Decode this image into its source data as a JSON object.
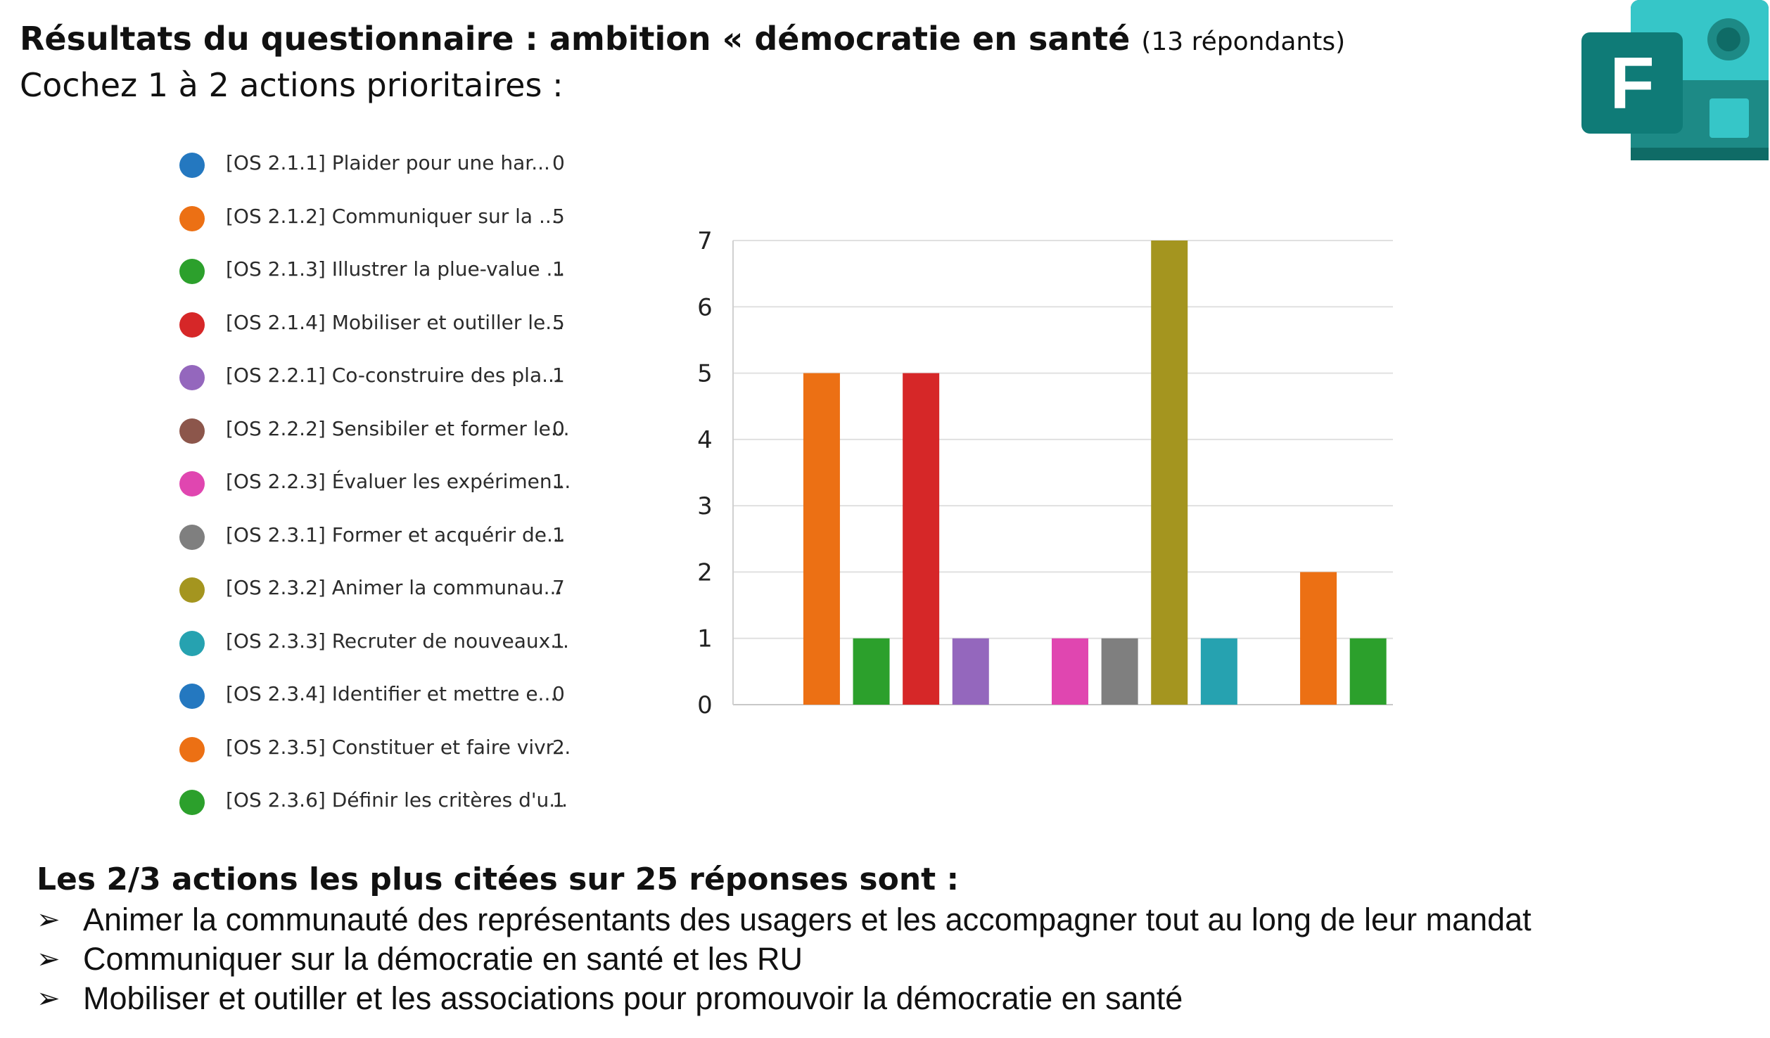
{
  "header": {
    "title": "Résultats du questionnaire : ambition « démocratie en santé",
    "respondents": "(13 répondants)",
    "subtitle": "Cochez 1 à 2 actions prioritaires :"
  },
  "logo": {
    "letter": "F",
    "icon": "microsoft-forms-logo"
  },
  "colors": {
    "blue": "#2478c0",
    "orange": "#ec7014",
    "green": "#2ca02c",
    "red": "#d62728",
    "purple": "#9467bd",
    "brown": "#8c564b",
    "pink": "#e046b0",
    "grey": "#7f7f7f",
    "olive": "#a4951f",
    "teal": "#26a2b0"
  },
  "legend": [
    {
      "label": "[OS 2.1.1] Plaider pour une har...",
      "count": "0",
      "color": "#2478c0"
    },
    {
      "label": "[OS 2.1.2] Communiquer sur la ...",
      "count": "5",
      "color": "#ec7014"
    },
    {
      "label": "[OS 2.1.3] Illustrer la plue-value ...",
      "count": "1",
      "color": "#2ca02c"
    },
    {
      "label": "[OS 2.1.4] Mobiliser et outiller le...",
      "count": "5",
      "color": "#d62728"
    },
    {
      "label": "[OS 2.2.1] Co-construire des pla...",
      "count": "1",
      "color": "#9467bd"
    },
    {
      "label": "[OS 2.2.2] Sensibiler et former le...",
      "count": "0",
      "color": "#8c564b"
    },
    {
      "label": "[OS 2.2.3] Évaluer les expérimen...",
      "count": "1",
      "color": "#e046b0"
    },
    {
      "label": "[OS 2.3.1] Former et acquérir de...",
      "count": "1",
      "color": "#7f7f7f"
    },
    {
      "label": "[OS 2.3.2] Animer la communau...",
      "count": "7",
      "color": "#a4951f"
    },
    {
      "label": "[OS 2.3.3] Recruter de nouveaux...",
      "count": "1",
      "color": "#26a2b0"
    },
    {
      "label": "[OS 2.3.4] Identifier  et mettre e...",
      "count": "0",
      "color": "#2478c0"
    },
    {
      "label": "[OS 2.3.5] Constituer et faire vivr...",
      "count": "2",
      "color": "#ec7014"
    },
    {
      "label": "[OS 2.3.6] Définir les critères d'u...",
      "count": "1",
      "color": "#2ca02c"
    }
  ],
  "chart_data": {
    "type": "bar",
    "categories": [
      "[OS 2.1.1]",
      "[OS 2.1.2]",
      "[OS 2.1.3]",
      "[OS 2.1.4]",
      "[OS 2.2.1]",
      "[OS 2.2.2]",
      "[OS 2.2.3]",
      "[OS 2.3.1]",
      "[OS 2.3.2]",
      "[OS 2.3.3]",
      "[OS 2.3.4]",
      "[OS 2.3.5]",
      "[OS 2.3.6]"
    ],
    "values": [
      0,
      5,
      1,
      5,
      1,
      0,
      1,
      1,
      7,
      1,
      0,
      2,
      1
    ],
    "colors": [
      "#2478c0",
      "#ec7014",
      "#2ca02c",
      "#d62728",
      "#9467bd",
      "#8c564b",
      "#e046b0",
      "#7f7f7f",
      "#a4951f",
      "#26a2b0",
      "#2478c0",
      "#ec7014",
      "#2ca02c"
    ],
    "yticks": [
      "0",
      "1",
      "2",
      "3",
      "4",
      "5",
      "6",
      "7"
    ],
    "ylim": [
      0,
      7
    ],
    "grid": true,
    "legend_position": "left"
  },
  "summary": {
    "heading": "Les 2/3 actions les plus citées sur 25 réponses sont :",
    "bullet_glyph": "➢",
    "items": [
      "Animer la communauté des représentants des usagers et les accompagner tout au long de leur mandat",
      "Communiquer sur la démocratie en santé et les RU",
      "Mobiliser et outiller et les associations pour promouvoir la démocratie en santé"
    ]
  }
}
